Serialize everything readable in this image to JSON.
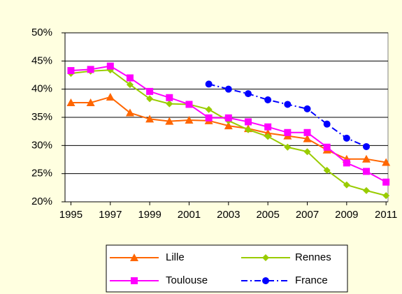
{
  "chart_data": {
    "type": "line",
    "x": [
      1995,
      1996,
      1997,
      1998,
      1999,
      2000,
      2001,
      2002,
      2003,
      2004,
      2005,
      2006,
      2007,
      2008,
      2009,
      2010,
      2011
    ],
    "xlim": [
      1994.7,
      2011.1
    ],
    "xticks": [
      1995,
      1997,
      1999,
      2001,
      2003,
      2005,
      2007,
      2009,
      2011
    ],
    "ylim": [
      20,
      50
    ],
    "yticks": [
      {
        "value": 20,
        "label": "20%"
      },
      {
        "value": 25,
        "label": "25%"
      },
      {
        "value": 30,
        "label": "30%"
      },
      {
        "value": 35,
        "label": "35%"
      },
      {
        "value": 40,
        "label": "40%"
      },
      {
        "value": 45,
        "label": "45%"
      },
      {
        "value": 50,
        "label": "50%"
      }
    ],
    "grid": true,
    "legend": "bottom",
    "series": [
      {
        "name": "Lille",
        "color": "#ff6600",
        "marker": "triangle",
        "line_style": "solid",
        "values": [
          37.6,
          37.6,
          38.6,
          35.8,
          34.7,
          34.3,
          34.5,
          34.4,
          33.5,
          33.0,
          32.2,
          31.7,
          31.2,
          29.2,
          27.6,
          27.6,
          27.0
        ]
      },
      {
        "name": "Rennes",
        "color": "#99cc00",
        "marker": "diamond",
        "line_style": "solid",
        "values": [
          42.8,
          43.2,
          43.4,
          40.8,
          38.3,
          37.4,
          37.3,
          36.4,
          34.4,
          32.8,
          31.6,
          29.7,
          28.9,
          25.6,
          23.0,
          22.0,
          21.1
        ]
      },
      {
        "name": "Toulouse",
        "color": "#ff00ff",
        "marker": "square",
        "line_style": "solid",
        "values": [
          43.3,
          43.5,
          44.1,
          42.0,
          39.6,
          38.5,
          37.3,
          34.9,
          34.9,
          34.2,
          33.3,
          32.3,
          32.3,
          29.7,
          26.9,
          25.4,
          23.5
        ]
      },
      {
        "name": "France",
        "color": "#0000ff",
        "marker": "circle",
        "line_style": "dashdot",
        "values": [
          null,
          null,
          null,
          null,
          null,
          null,
          null,
          40.9,
          40.0,
          39.2,
          38.1,
          37.3,
          36.5,
          33.8,
          31.3,
          29.8,
          null
        ]
      }
    ]
  }
}
